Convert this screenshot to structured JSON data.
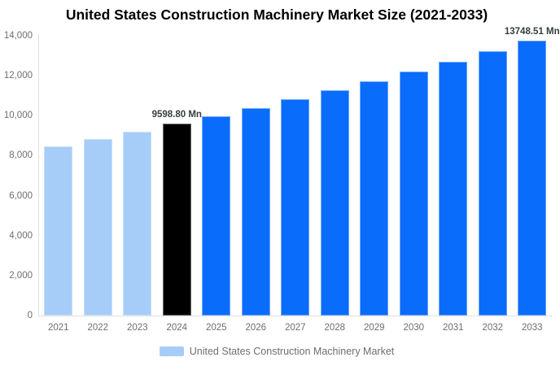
{
  "chart_data": {
    "type": "bar",
    "title": "United States Construction Machinery Market Size (2021-2033)",
    "unit": "Mn",
    "categories": [
      "2021",
      "2022",
      "2023",
      "2024",
      "2025",
      "2026",
      "2027",
      "2028",
      "2029",
      "2030",
      "2031",
      "2032",
      "2033"
    ],
    "values": [
      8460,
      8830,
      9210,
      9598.8,
      9990,
      10395,
      10820,
      11260,
      11720,
      12195,
      12690,
      13210,
      13748.51
    ],
    "ylim": [
      0,
      14000
    ],
    "y_ticks": [
      0,
      2000,
      4000,
      6000,
      8000,
      10000,
      12000,
      14000
    ],
    "y_tick_labels": [
      "0",
      "2,000",
      "4,000",
      "6,000",
      "8,000",
      "10,000",
      "12,000",
      "14,000"
    ],
    "bar_colors": [
      "#A5CDF8",
      "#A5CDF8",
      "#A5CDF8",
      "#000000",
      "#0A6CFB",
      "#0A6CFB",
      "#0A6CFB",
      "#0A6CFB",
      "#0A6CFB",
      "#0A6CFB",
      "#0A6CFB",
      "#0A6CFB",
      "#0A6CFB"
    ],
    "annotations": [
      {
        "category": "2024",
        "text": "9598.80 Mn"
      },
      {
        "category": "2033",
        "text": "13748.51 Mn"
      }
    ],
    "grid": false,
    "legend_position": "bottom",
    "legend": {
      "label": "United States Construction Machinery Market",
      "swatch_color": "#A5CDF8"
    },
    "colors": {
      "historical_bar": "#A5CDF8",
      "current_year_bar": "#000000",
      "forecast_bar": "#0A6CFB",
      "axis_text": "#6e6e6e",
      "annotation_text": "#373d3f",
      "axis_line": "#e0e0e0"
    }
  }
}
